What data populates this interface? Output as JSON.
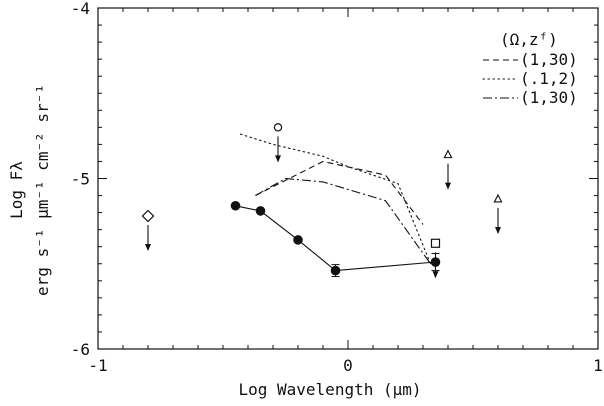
{
  "chart_data": {
    "type": "scatter",
    "xlabel": "Log Wavelength  (μm)",
    "ylabel_line1": "Log Fλ",
    "ylabel_line2": "erg s⁻¹ μm⁻¹ cm⁻² sr⁻¹",
    "xlim": [
      -1,
      1
    ],
    "ylim": [
      -6,
      -4
    ],
    "x_ticks": [
      -1,
      0,
      1
    ],
    "x_tick_labels": [
      "-1",
      "0",
      "1"
    ],
    "y_ticks": [
      -6,
      -5,
      -4
    ],
    "y_tick_labels": [
      "-6",
      "-5",
      "-4"
    ],
    "grid": false,
    "legend_position": "top-right",
    "legend_title": "(Ω,zᶠ)",
    "series": [
      {
        "name": "(1,30)",
        "style": "dashed",
        "x": [
          -0.37,
          -0.1,
          0.15,
          0.3
        ],
        "y": [
          -5.1,
          -4.9,
          -4.98,
          -5.27
        ]
      },
      {
        "name": "(.1,2)",
        "style": "dotted",
        "x": [
          -0.43,
          -0.3,
          -0.1,
          0.0,
          0.2,
          0.33
        ],
        "y": [
          -4.74,
          -4.8,
          -4.87,
          -4.93,
          -5.03,
          -5.5
        ]
      },
      {
        "name": "(1,30)",
        "style": "dashdot",
        "x": [
          -0.37,
          -0.25,
          -0.1,
          0.15,
          0.33
        ],
        "y": [
          -5.1,
          -5.0,
          -5.02,
          -5.13,
          -5.5
        ]
      },
      {
        "name": "",
        "style": "solid-markers",
        "x": [
          -0.45,
          -0.35,
          -0.2,
          -0.05,
          0.35
        ],
        "y": [
          -5.16,
          -5.19,
          -5.36,
          -5.54,
          -5.49
        ],
        "yerr": [
          0,
          0,
          0,
          0.035,
          0.05
        ]
      }
    ],
    "upper_limits": [
      {
        "marker": "diamond",
        "x": -0.8,
        "y": -5.22
      },
      {
        "marker": "circle",
        "x": -0.28,
        "y": -4.7
      },
      {
        "marker": "square",
        "x": 0.35,
        "y": -5.38
      },
      {
        "marker": "triangle",
        "x": 0.4,
        "y": -4.86
      },
      {
        "marker": "triangle",
        "x": 0.6,
        "y": -5.12
      }
    ]
  }
}
